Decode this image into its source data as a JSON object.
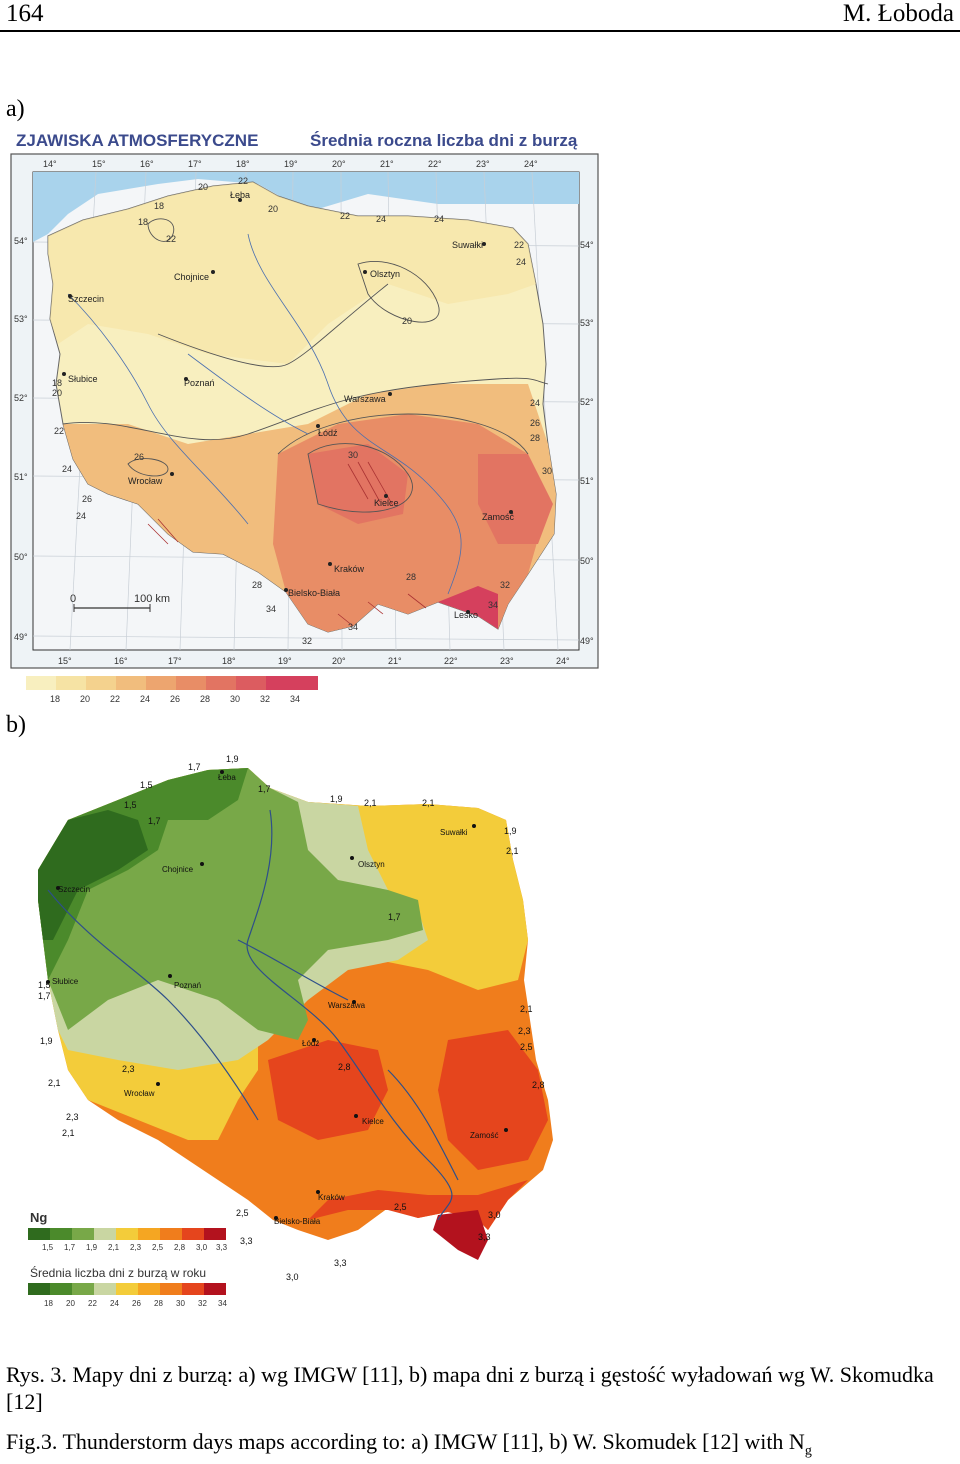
{
  "header": {
    "page_number": "164",
    "author": "M. Łoboda"
  },
  "panel_a": {
    "label": "a)",
    "title_left": "ZJAWISKA ATMOSFERYCZNE",
    "title_right": "Średnia roczna liczba dni z burzą",
    "lon_ticks_top": [
      "14°",
      "15°",
      "16°",
      "17°",
      "18°",
      "19°",
      "20°",
      "21°",
      "22°",
      "23°",
      "24°"
    ],
    "lon_ticks_bottom": [
      "15°",
      "16°",
      "17°",
      "18°",
      "19°",
      "20°",
      "21°",
      "22°",
      "23°",
      "24°"
    ],
    "lat_ticks": [
      "54°",
      "53°",
      "52°",
      "51°",
      "50°",
      "49°"
    ],
    "cities": [
      "Łeba",
      "Chojnice",
      "Szczecin",
      "Olsztyn",
      "Suwałki",
      "Słubice",
      "Poznań",
      "Warszawa",
      "Łódź",
      "Wrocław",
      "Kielce",
      "Zamość",
      "Kraków",
      "Bielsko-Biała",
      "Lesko"
    ],
    "scale_bar": {
      "zero": "0",
      "label": "100 km"
    },
    "legend_values": [
      "18",
      "20",
      "22",
      "24",
      "26",
      "28",
      "30",
      "32",
      "34"
    ],
    "legend_colors": [
      "#f8efbf",
      "#f6e3a4",
      "#f4d28e",
      "#f1bd7d",
      "#eda56f",
      "#e88d66",
      "#e27462",
      "#dc5c60",
      "#d5405d"
    ]
  },
  "panel_b": {
    "label": "b)",
    "cities": [
      "Łeba",
      "Suwałki",
      "Chojnice",
      "Olsztyn",
      "Szczecin",
      "Słubice",
      "Poznań",
      "Warszawa",
      "Łódź",
      "Wrocław",
      "Kielce",
      "Zamość",
      "Kraków",
      "Bielsko-Biała"
    ],
    "legend_ng_title": "Ng",
    "legend_ng_values": [
      "1,5",
      "1,7",
      "1,9",
      "2,1",
      "2,3",
      "2,5",
      "2,8",
      "3,0",
      "3,3"
    ],
    "legend_days_title": "Średnia liczba dni z burzą w roku",
    "legend_days_values": [
      "18",
      "20",
      "22",
      "24",
      "26",
      "28",
      "30",
      "32",
      "34"
    ],
    "legend_colors": [
      "#2f6b1e",
      "#4b8a2b",
      "#78a848",
      "#c9d6a2",
      "#f3cc3a",
      "#f5a622",
      "#f07d1c",
      "#e5451d",
      "#b3121e"
    ]
  },
  "caption": {
    "pl": "Rys. 3. Mapy dni z burzą: a) wg IMGW [11], b) mapa dni z burzą i gęstość wyładowań wg W. Skomudka [12]",
    "en_text": "Fig.3. Thunderstorm days maps according to: a) IMGW [11], b) W. Skomudek [12] with N",
    "en_sub": "g"
  }
}
